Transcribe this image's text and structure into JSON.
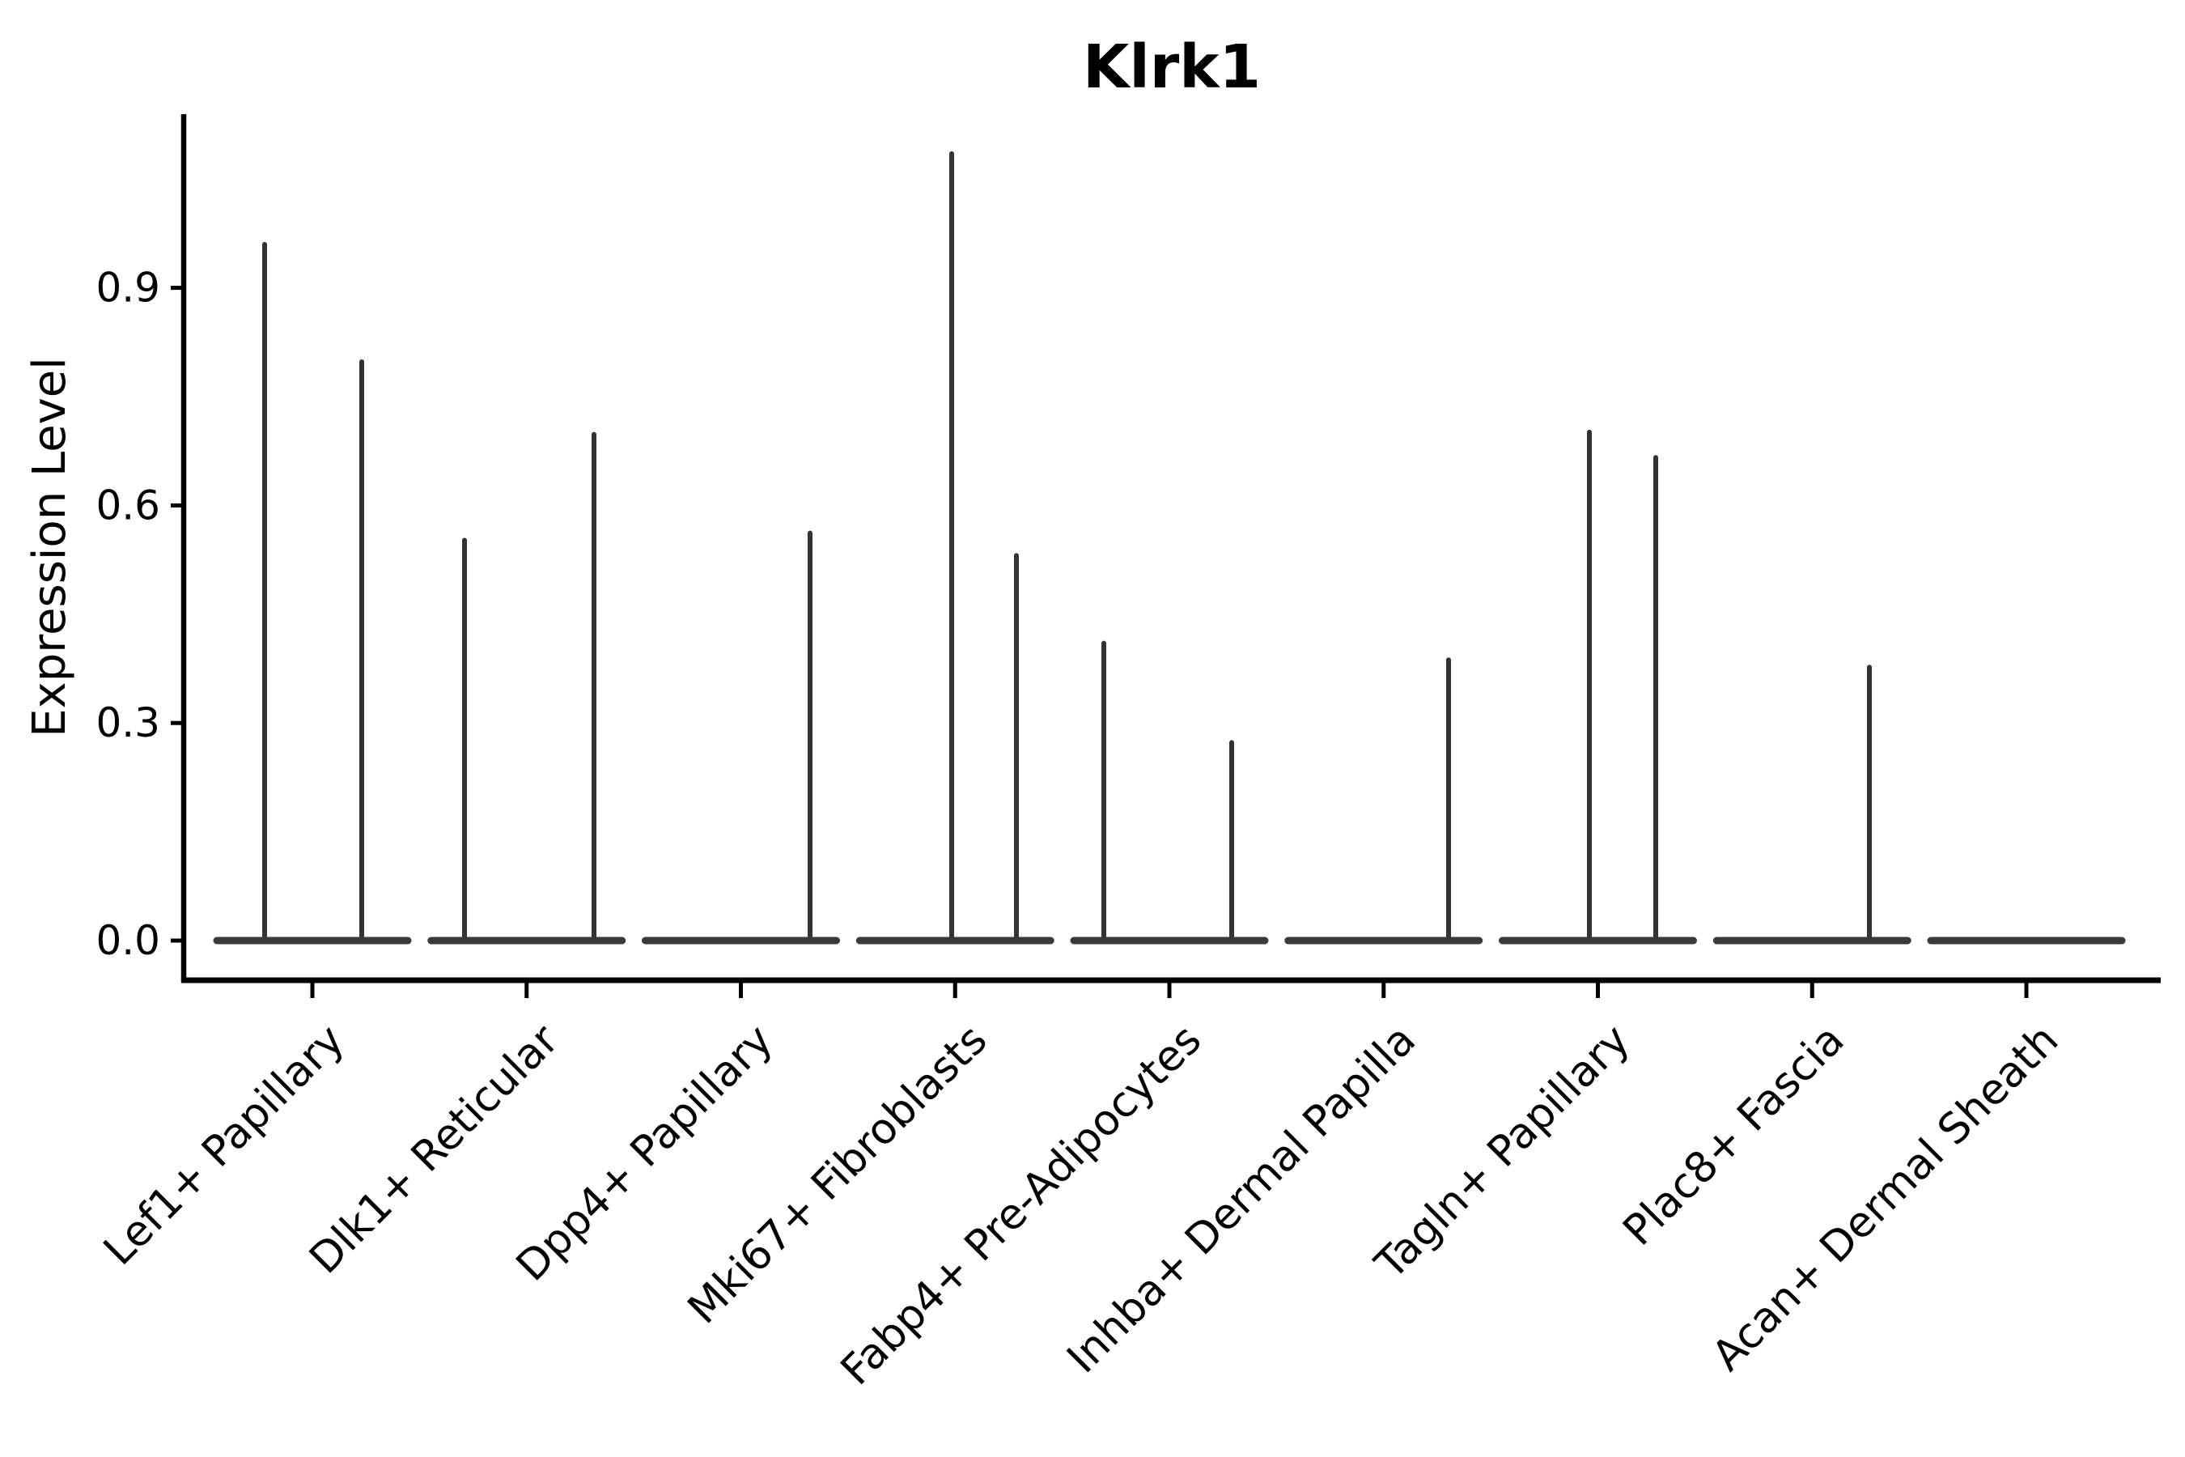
{
  "figure": {
    "background": "#ffffff",
    "ink_color": "#000000",
    "violin_color": "#3a3a3a",
    "spike_color": "#333333"
  },
  "chart_data": {
    "type": "violin",
    "title": "Klrk1",
    "xlabel": "",
    "ylabel": "Expression Level",
    "yticks": [
      "0.0",
      "0.3",
      "0.6",
      "0.9"
    ],
    "ytick_values": [
      0.0,
      0.3,
      0.6,
      0.9
    ],
    "ylim": [
      0.0,
      1.14
    ],
    "grid": "off",
    "legend": "none",
    "categories": [
      "Lef1+ Papillary",
      "Dlk1+ Reticular",
      "Dpp4+ Papillary",
      "Mki67+ Fibroblasts",
      "Fabp4+ Pre-Adipocytes",
      "Inhba+ Dermal Papilla",
      "Tagln+ Papillary",
      "Plac8+ Fascia",
      "Acan+ Dermal Sheath"
    ],
    "violins": [
      {
        "category": "Lef1+ Papillary",
        "baseline_value": 0.0,
        "spikes": [
          {
            "x": 327,
            "max": 0.96
          },
          {
            "x": 447,
            "max": 0.798
          }
        ]
      },
      {
        "category": "Dlk1+ Reticular",
        "baseline_value": 0.0,
        "spikes": [
          {
            "x": 574,
            "max": 0.552
          },
          {
            "x": 734,
            "max": 0.698
          }
        ]
      },
      {
        "category": "Dpp4+ Papillary",
        "baseline_value": 0.0,
        "spikes": [
          {
            "x": 1001,
            "max": 0.562
          }
        ]
      },
      {
        "category": "Mki67+ Fibroblasts",
        "baseline_value": 0.0,
        "spikes": [
          {
            "x": 1176,
            "max": 1.085
          },
          {
            "x": 1256,
            "max": 0.531
          }
        ]
      },
      {
        "category": "Fabp4+ Pre-Adipocytes",
        "baseline_value": 0.0,
        "spikes": [
          {
            "x": 1364,
            "max": 0.41
          },
          {
            "x": 1522,
            "max": 0.273
          }
        ]
      },
      {
        "category": "Inhba+ Dermal Papilla",
        "baseline_value": 0.0,
        "spikes": [
          {
            "x": 1790,
            "max": 0.387
          }
        ]
      },
      {
        "category": "Tagln+ Papillary",
        "baseline_value": 0.0,
        "spikes": [
          {
            "x": 1964,
            "max": 0.701
          },
          {
            "x": 2046,
            "max": 0.666
          }
        ]
      },
      {
        "category": "Plac8+ Fascia",
        "baseline_value": 0.0,
        "spikes": [
          {
            "x": 2310,
            "max": 0.377
          }
        ]
      },
      {
        "category": "Acan+ Dermal Sheath",
        "baseline_value": 0.0,
        "spikes": []
      }
    ]
  }
}
